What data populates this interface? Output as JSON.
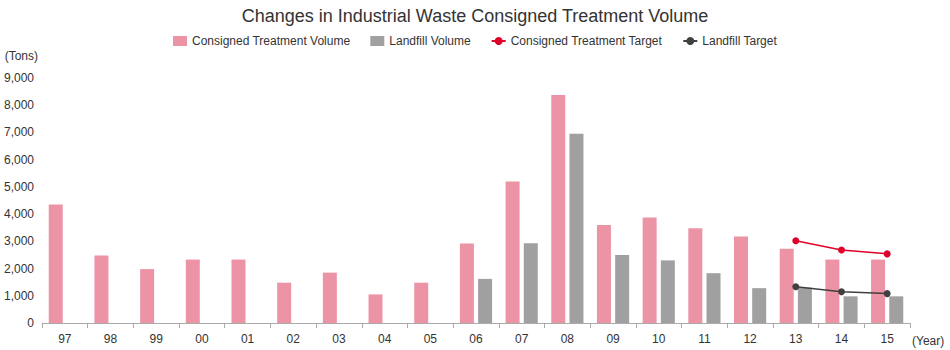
{
  "chart_data": {
    "type": "bar",
    "title": "Changes in Industrial Waste Consigned Treatment Volume",
    "xlabel": "(Year)",
    "ylabel": "(Tons)",
    "categories": [
      "97",
      "98",
      "99",
      "00",
      "01",
      "02",
      "03",
      "04",
      "05",
      "06",
      "07",
      "08",
      "09",
      "10",
      "11",
      "12",
      "13",
      "14",
      "15"
    ],
    "series": [
      {
        "name": "Consigned Treatment Volume",
        "type": "bar",
        "color": "#ec94a6",
        "values": [
          4350,
          2480,
          1980,
          2330,
          2330,
          1480,
          1850,
          1050,
          1480,
          2920,
          5200,
          8380,
          3600,
          3880,
          3480,
          3180,
          2730,
          2330,
          2330
        ]
      },
      {
        "name": "Landfill Volume",
        "type": "bar",
        "color": "#a0a0a0",
        "values": [
          null,
          null,
          null,
          null,
          null,
          null,
          null,
          null,
          null,
          1620,
          2930,
          6950,
          2500,
          2300,
          1830,
          1280,
          1300,
          980,
          980
        ]
      },
      {
        "name": "Consigned Treatment Target",
        "type": "line",
        "color": "#e0002a",
        "marker": "circle",
        "values": [
          null,
          null,
          null,
          null,
          null,
          null,
          null,
          null,
          null,
          null,
          null,
          null,
          null,
          null,
          null,
          null,
          3020,
          2680,
          2540
        ]
      },
      {
        "name": "Landfill Target",
        "type": "line",
        "color": "#404040",
        "marker": "circle",
        "values": [
          null,
          null,
          null,
          null,
          null,
          null,
          null,
          null,
          null,
          null,
          null,
          null,
          null,
          null,
          null,
          null,
          1330,
          1150,
          1080
        ]
      }
    ],
    "ylim": [
      0,
      9000
    ],
    "yticks": [
      0,
      {
        "value": 1000,
        "label": "1,000"
      },
      {
        "value": 2000,
        "label": "2,000"
      },
      {
        "value": 3000,
        "label": "3,000"
      },
      {
        "value": 4000,
        "label": "4,000"
      },
      {
        "value": 5000,
        "label": "5,000"
      },
      {
        "value": 6000,
        "label": "6,000"
      },
      {
        "value": 7000,
        "label": "7,000"
      },
      {
        "value": 8000,
        "label": "8,000"
      },
      {
        "value": 9000,
        "label": "9,000"
      }
    ],
    "grid": false,
    "legend": "top"
  }
}
